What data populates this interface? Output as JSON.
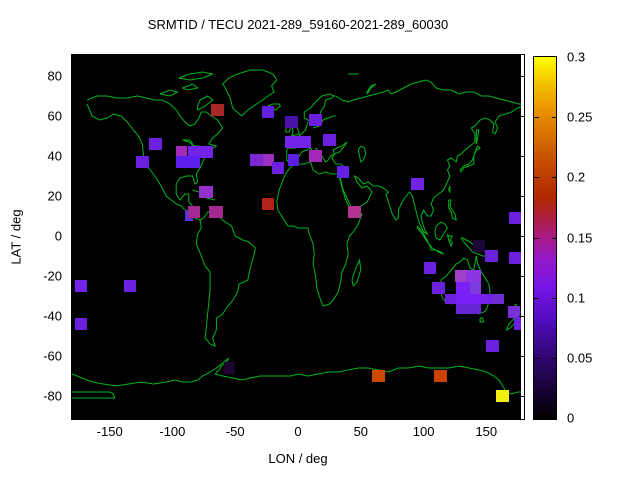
{
  "chart_data": {
    "type": "heatmap",
    "title": "SRMTID / TECU 2021-289_59160-2021-289_60030",
    "xlabel": "LON / deg",
    "ylabel": "LAT / deg",
    "xlim": [
      -180,
      180
    ],
    "ylim": [
      -90,
      90
    ],
    "x_ticks": [
      -150,
      -100,
      -50,
      0,
      50,
      100,
      150
    ],
    "y_ticks": [
      80,
      60,
      40,
      20,
      0,
      -20,
      -40,
      -60,
      -80
    ],
    "grid": false,
    "plot_background": "#000000",
    "coastline_color": "#00b41e",
    "legend_position": "none",
    "colorbar": {
      "position": "right",
      "min": 0,
      "max": 0.3,
      "ticks": [
        0,
        0.05,
        0.1,
        0.15,
        0.2,
        0.25,
        0.3
      ],
      "palette": [
        "#000000",
        "#2e0668",
        "#7514e6",
        "#a81a88",
        "#b02800",
        "#c24800",
        "#e89200",
        "#ffff00"
      ]
    },
    "cells": [
      {
        "lon": -69,
        "lat": 66,
        "dlon": 10,
        "dlat": 6,
        "tecu": 0.16,
        "color": "#a82828"
      },
      {
        "lon": -29,
        "lat": 65,
        "dlon": 10,
        "dlat": 6,
        "tecu": 0.09,
        "color": "#6220e0"
      },
      {
        "lon": -10,
        "lat": 60,
        "dlon": 10,
        "dlat": 6,
        "tecu": 0.07,
        "color": "#4812a8"
      },
      {
        "lon": 9,
        "lat": 61,
        "dlon": 10,
        "dlat": 6,
        "tecu": 0.09,
        "color": "#6a20dd"
      },
      {
        "lon": -119,
        "lat": 49,
        "dlon": 11,
        "dlat": 6,
        "tecu": 0.09,
        "color": "#6d1fe0"
      },
      {
        "lon": -97,
        "lat": 45,
        "dlon": 9,
        "dlat": 6,
        "tecu": 0.12,
        "color": "#a128b8"
      },
      {
        "lon": -88,
        "lat": 45,
        "dlon": 10,
        "dlat": 6,
        "tecu": 0.1,
        "color": "#7322e8"
      },
      {
        "lon": -78,
        "lat": 45,
        "dlon": 10,
        "dlat": 6,
        "tecu": 0.1,
        "color": "#7322e8"
      },
      {
        "lon": -129,
        "lat": 40,
        "dlon": 10,
        "dlat": 6,
        "tecu": 0.09,
        "color": "#6d1fe0"
      },
      {
        "lon": -97,
        "lat": 40,
        "dlon": 9.5,
        "dlat": 6,
        "tecu": 0.08,
        "color": "#5b1fee"
      },
      {
        "lon": -87.5,
        "lat": 40,
        "dlon": 9.5,
        "dlat": 6,
        "tecu": 0.08,
        "color": "#5b1fee"
      },
      {
        "lon": -38,
        "lat": 41,
        "dlon": 10,
        "dlat": 6,
        "tecu": 0.1,
        "color": "#7a28d0"
      },
      {
        "lon": -28,
        "lat": 41,
        "dlon": 9,
        "dlat": 6,
        "tecu": 0.12,
        "color": "#9c2fc0"
      },
      {
        "lon": -21,
        "lat": 37,
        "dlon": 10,
        "dlat": 6,
        "tecu": 0.09,
        "color": "#6a20dd"
      },
      {
        "lon": -8,
        "lat": 41,
        "dlon": 9,
        "dlat": 6,
        "tecu": 0.08,
        "color": "#5c1fe0"
      },
      {
        "lon": -10,
        "lat": 50,
        "dlon": 10,
        "dlat": 6,
        "tecu": 0.1,
        "color": "#7322e8"
      },
      {
        "lon": 0,
        "lat": 50,
        "dlon": 10,
        "dlat": 6,
        "tecu": 0.1,
        "color": "#7322e8"
      },
      {
        "lon": 20,
        "lat": 51,
        "dlon": 10,
        "dlat": 6,
        "tecu": 0.09,
        "color": "#6a20dd"
      },
      {
        "lon": 9,
        "lat": 43,
        "dlon": 10,
        "dlat": 6,
        "tecu": 0.12,
        "color": "#a128b8"
      },
      {
        "lon": 31,
        "lat": 35,
        "dlon": 10,
        "dlat": 6,
        "tecu": 0.09,
        "color": "#6220e0"
      },
      {
        "lon": 40,
        "lat": 15,
        "dlon": 10,
        "dlat": 6,
        "tecu": 0.13,
        "color": "#b23390"
      },
      {
        "lon": -29,
        "lat": 19,
        "dlon": 10,
        "dlat": 6,
        "tecu": 0.16,
        "color": "#b32418"
      },
      {
        "lon": -79,
        "lat": 25,
        "dlon": 11,
        "dlat": 6,
        "tecu": 0.12,
        "color": "#9530cc"
      },
      {
        "lon": -90,
        "lat": 13,
        "dlon": 6,
        "dlat": 5.5,
        "tecu": 0.08,
        "color": "#5533dd"
      },
      {
        "lon": -88,
        "lat": 15,
        "dlon": 10,
        "dlat": 6,
        "tecu": 0.13,
        "color": "#a52890"
      },
      {
        "lon": -71,
        "lat": 15,
        "dlon": 11,
        "dlat": 6,
        "tecu": 0.13,
        "color": "#a52890"
      },
      {
        "lon": 90,
        "lat": 29,
        "dlon": 10,
        "dlat": 6,
        "tecu": 0.1,
        "color": "#7322e8"
      },
      {
        "lon": 168,
        "lat": 12,
        "dlon": 10,
        "dlat": 6,
        "tecu": 0.09,
        "color": "#6a20dd"
      },
      {
        "lon": 168,
        "lat": -8,
        "dlon": 10,
        "dlat": 6,
        "tecu": 0.09,
        "color": "#6a20dd"
      },
      {
        "lon": -178,
        "lat": -22,
        "dlon": 10,
        "dlat": 6,
        "tecu": 0.1,
        "color": "#7322e8"
      },
      {
        "lon": -139,
        "lat": -22,
        "dlon": 10,
        "dlat": 6,
        "tecu": 0.09,
        "color": "#6a20dd"
      },
      {
        "lon": -178,
        "lat": -41,
        "dlon": 10,
        "dlat": 6,
        "tecu": 0.09,
        "color": "#6a20dd"
      },
      {
        "lon": 139,
        "lat": -2,
        "dlon": 10,
        "dlat": 6,
        "tecu": 0.02,
        "color": "#1e0736"
      },
      {
        "lon": 149,
        "lat": -7,
        "dlon": 10,
        "dlat": 6,
        "tecu": 0.09,
        "color": "#6a20dd"
      },
      {
        "lon": 100,
        "lat": -13,
        "dlon": 10,
        "dlat": 6,
        "tecu": 0.09,
        "color": "#6a20dd"
      },
      {
        "lon": 125,
        "lat": -17,
        "dlon": 9,
        "dlat": 6,
        "tecu": 0.12,
        "color": "#a040c8"
      },
      {
        "lon": 134,
        "lat": -17,
        "dlon": 12,
        "dlat": 6,
        "tecu": 0.11,
        "color": "#8a35e0"
      },
      {
        "lon": 107,
        "lat": -23,
        "dlon": 10,
        "dlat": 6,
        "tecu": 0.09,
        "color": "#6a20dd"
      },
      {
        "lon": 126,
        "lat": -23,
        "dlon": 11,
        "dlat": 6,
        "tecu": 0.1,
        "color": "#7a22f5"
      },
      {
        "lon": 137,
        "lat": -23,
        "dlon": 9,
        "dlat": 6,
        "tecu": 0.1,
        "color": "#7d3ae0"
      },
      {
        "lon": 117,
        "lat": -29,
        "dlon": 9,
        "dlat": 5,
        "tecu": 0.09,
        "color": "#6a20dd"
      },
      {
        "lon": 126,
        "lat": -29,
        "dlon": 20,
        "dlat": 5,
        "tecu": 0.1,
        "color": "#7a22f5"
      },
      {
        "lon": 146,
        "lat": -29,
        "dlon": 9,
        "dlat": 5,
        "tecu": 0.1,
        "color": "#7322e8"
      },
      {
        "lon": 155,
        "lat": -29,
        "dlon": 9,
        "dlat": 5,
        "tecu": 0.09,
        "color": "#6d30d0"
      },
      {
        "lon": 126,
        "lat": -34,
        "dlon": 20,
        "dlat": 5,
        "tecu": 0.09,
        "color": "#6625d5"
      },
      {
        "lon": 167,
        "lat": -35,
        "dlon": 10,
        "dlat": 6,
        "tecu": 0.1,
        "color": "#7a30d8"
      },
      {
        "lon": 172,
        "lat": -41,
        "dlon": 8,
        "dlat": 6,
        "tecu": 0.09,
        "color": "#6a20dd"
      },
      {
        "lon": 150,
        "lat": -52,
        "dlon": 10,
        "dlat": 6,
        "tecu": 0.09,
        "color": "#6a20dd"
      },
      {
        "lon": -59,
        "lat": -63,
        "dlon": 9,
        "dlat": 6,
        "tecu": 0.02,
        "color": "#1c0630"
      },
      {
        "lon": 59,
        "lat": -67,
        "dlon": 10,
        "dlat": 6,
        "tecu": 0.21,
        "color": "#cc4a00"
      },
      {
        "lon": 108,
        "lat": -67,
        "dlon": 11,
        "dlat": 6,
        "tecu": 0.21,
        "color": "#cc4200"
      },
      {
        "lon": 158,
        "lat": -77,
        "dlon": 10,
        "dlat": 6,
        "tecu": 0.29,
        "color": "#f2ee10"
      }
    ]
  }
}
